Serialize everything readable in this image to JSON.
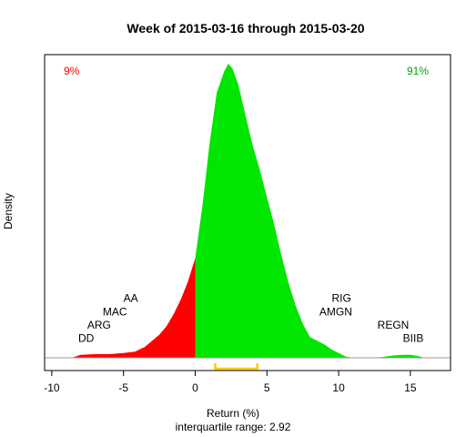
{
  "chart_data": {
    "type": "area",
    "title": "Week of 2015-03-16 through 2015-03-20",
    "xlabel": "Return (%)",
    "subtitle": "interquartile range: 2.92",
    "ylabel": "Density",
    "xlim": [
      -10.5,
      17.8
    ],
    "ylim": [
      0,
      0.255
    ],
    "x_ticks": [
      -10,
      -5,
      0,
      5,
      10,
      15
    ],
    "x_tick_labels": [
      "-10",
      "-5",
      "0",
      "5",
      "10",
      "15"
    ],
    "split_at": 0,
    "left_percent_label": "9%",
    "right_percent_label": "91%",
    "colors": {
      "negative": "#ff0000",
      "positive": "#00e600",
      "iqr": "#ffcc00",
      "axis": "#000000"
    },
    "interquartile": {
      "range": 2.92,
      "q1": 1.4,
      "q3": 4.32
    },
    "density": {
      "x": [
        -8.6,
        -8.0,
        -7.0,
        -6.0,
        -5.0,
        -4.2,
        -3.5,
        -3.0,
        -2.5,
        -2.0,
        -1.5,
        -1.0,
        -0.5,
        0.0,
        0.5,
        1.0,
        1.5,
        2.0,
        2.3,
        2.6,
        3.0,
        3.5,
        4.0,
        4.5,
        5.0,
        5.5,
        6.0,
        6.5,
        7.0,
        7.5,
        8.0,
        8.5,
        9.0,
        9.5,
        10.0,
        10.5,
        11.0,
        11.2,
        11.5,
        12.0,
        13.0,
        13.5,
        14.0,
        14.5,
        15.0,
        15.5,
        16.0
      ],
      "y": [
        0.0,
        0.0025,
        0.003,
        0.003,
        0.004,
        0.005,
        0.009,
        0.014,
        0.019,
        0.026,
        0.036,
        0.048,
        0.063,
        0.082,
        0.125,
        0.176,
        0.218,
        0.235,
        0.242,
        0.238,
        0.225,
        0.2,
        0.175,
        0.155,
        0.132,
        0.11,
        0.085,
        0.062,
        0.043,
        0.028,
        0.017,
        0.014,
        0.011,
        0.007,
        0.004,
        0.001,
        0.0,
        0.0,
        0.0,
        0.0,
        0.0005,
        0.0015,
        0.002,
        0.0025,
        0.0025,
        0.0015,
        0.0
      ]
    },
    "annotations": [
      {
        "label": "DD",
        "x": -7.6,
        "y": 0.013
      },
      {
        "label": "ARG",
        "x": -6.7,
        "y": 0.024
      },
      {
        "label": "MAC",
        "x": -5.6,
        "y": 0.035
      },
      {
        "label": "AA",
        "x": -4.5,
        "y": 0.046
      },
      {
        "label": "RIG",
        "x": 10.2,
        "y": 0.046
      },
      {
        "label": "AMGN",
        "x": 9.8,
        "y": 0.035
      },
      {
        "label": "REGN",
        "x": 13.8,
        "y": 0.024
      },
      {
        "label": "BIIB",
        "x": 15.2,
        "y": 0.013
      }
    ]
  }
}
